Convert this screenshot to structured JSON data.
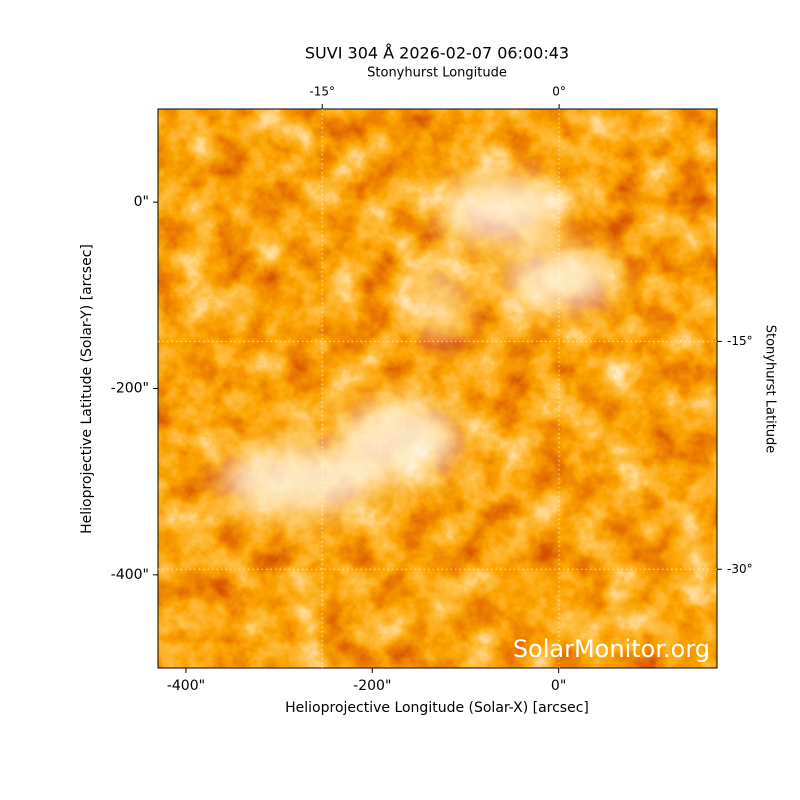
{
  "chart_data": {
    "type": "image",
    "title": "SUVI 304 Å 2026-02-07 06:00:43",
    "xlabel": "Helioprojective Longitude (Solar-X) [arcsec]",
    "ylabel": "Helioprojective Latitude (Solar-Y) [arcsec]",
    "x2label": "Stonyhurst Longitude",
    "y2label": "Stonyhurst Latitude",
    "xlim": [
      -430,
      170
    ],
    "xticks": [
      {
        "value": -400,
        "label": "-400\""
      },
      {
        "value": -200,
        "label": "-200\""
      },
      {
        "value": 0,
        "label": "0\""
      }
    ],
    "ylim": [
      -500,
      100
    ],
    "yticks": [
      {
        "value": 0,
        "label": "0\""
      },
      {
        "value": -200,
        "label": "-200\""
      },
      {
        "value": -400,
        "label": "-400\""
      }
    ],
    "x2lim": [
      -25.4,
      10
    ],
    "x2ticks": [
      {
        "value": -15,
        "label": "-15°"
      },
      {
        "value": 0,
        "label": "0°"
      }
    ],
    "y2lim": [
      -36.5,
      0.3
    ],
    "y2ticks": [
      {
        "value": -15,
        "label": "-15°"
      },
      {
        "value": -30,
        "label": "-30°"
      }
    ],
    "grid": true,
    "watermark": "SolarMonitor.org"
  }
}
